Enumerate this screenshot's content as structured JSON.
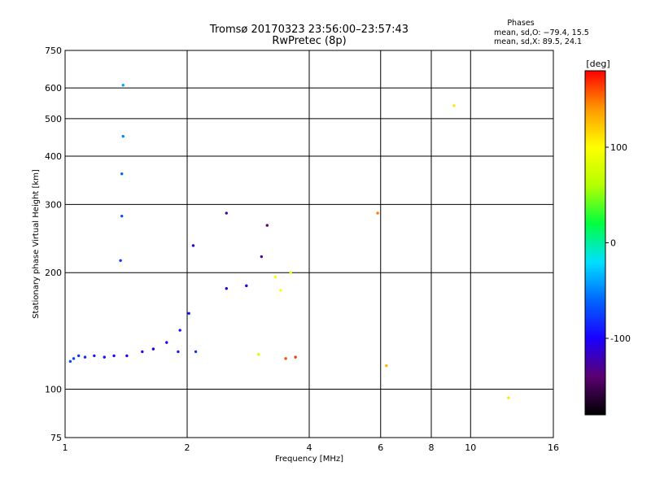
{
  "chart_data": {
    "type": "scatter",
    "title": "Tromsø 20170323 23:56:00–23:57:43",
    "subtitle": "RwPretec (8p)",
    "xlabel": "Frequency [MHz]",
    "ylabel": "Stationary phase Virtual Height [km]",
    "x_scale": "log",
    "y_scale": "log",
    "xlim": [
      1,
      16
    ],
    "ylim": [
      75,
      750
    ],
    "x_ticks": [
      1,
      2,
      4,
      6,
      8,
      10,
      16
    ],
    "y_ticks": [
      75,
      100,
      200,
      300,
      400,
      500,
      600,
      750
    ],
    "grid": true,
    "info_block": {
      "header": "Phases",
      "line1": "mean, sd,O: −79.4, 15.5",
      "line2": "mean, sd,X:  89.5, 24.1"
    },
    "colorbar": {
      "label": "[deg]",
      "range": [
        -180,
        180
      ],
      "ticks": [
        100,
        0,
        -100
      ],
      "colors": [
        "#000000",
        "#5a0070",
        "#1a00ff",
        "#0066ff",
        "#00e0ff",
        "#00ff40",
        "#b4ff00",
        "#ffff00",
        "#ff9900",
        "#ff0000"
      ]
    },
    "points_O": [
      {
        "f": 1.03,
        "h": 118,
        "p": -70
      },
      {
        "f": 1.05,
        "h": 120,
        "p": -75
      },
      {
        "f": 1.08,
        "h": 122,
        "p": -80
      },
      {
        "f": 1.12,
        "h": 121,
        "p": -85
      },
      {
        "f": 1.18,
        "h": 122,
        "p": -90
      },
      {
        "f": 1.25,
        "h": 121,
        "p": -95
      },
      {
        "f": 1.32,
        "h": 122,
        "p": -100
      },
      {
        "f": 1.42,
        "h": 122,
        "p": -100
      },
      {
        "f": 1.55,
        "h": 125,
        "p": -100
      },
      {
        "f": 1.65,
        "h": 127,
        "p": -105
      },
      {
        "f": 1.78,
        "h": 132,
        "p": -100
      },
      {
        "f": 1.92,
        "h": 142,
        "p": -95
      },
      {
        "f": 2.02,
        "h": 157,
        "p": -95
      },
      {
        "f": 1.37,
        "h": 215,
        "p": -80
      },
      {
        "f": 1.38,
        "h": 280,
        "p": -70
      },
      {
        "f": 1.38,
        "h": 360,
        "p": -60
      },
      {
        "f": 1.39,
        "h": 450,
        "p": -50
      },
      {
        "f": 1.39,
        "h": 610,
        "p": -40
      },
      {
        "f": 2.07,
        "h": 235,
        "p": -110
      },
      {
        "f": 2.5,
        "h": 285,
        "p": -125
      },
      {
        "f": 3.05,
        "h": 220,
        "p": -130
      },
      {
        "f": 3.15,
        "h": 265,
        "p": -140
      },
      {
        "f": 2.5,
        "h": 182,
        "p": -110
      },
      {
        "f": 2.8,
        "h": 185,
        "p": -105
      },
      {
        "f": 1.9,
        "h": 125,
        "p": -90
      },
      {
        "f": 2.1,
        "h": 125,
        "p": -80
      }
    ],
    "points_X": [
      {
        "f": 3.3,
        "h": 195,
        "p": 95
      },
      {
        "f": 3.4,
        "h": 180,
        "p": 100
      },
      {
        "f": 3.6,
        "h": 200,
        "p": 90
      },
      {
        "f": 3.5,
        "h": 120,
        "p": 160
      },
      {
        "f": 3.7,
        "h": 121,
        "p": 165
      },
      {
        "f": 3.0,
        "h": 123,
        "p": 80
      },
      {
        "f": 5.9,
        "h": 285,
        "p": 150
      },
      {
        "f": 6.2,
        "h": 115,
        "p": 130
      },
      {
        "f": 9.1,
        "h": 540,
        "p": 110
      },
      {
        "f": 12.4,
        "h": 95,
        "p": 110
      }
    ]
  }
}
